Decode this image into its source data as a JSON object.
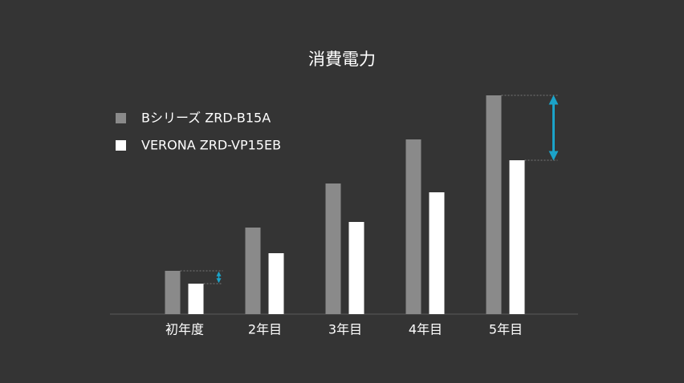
{
  "chart_data": {
    "type": "bar",
    "title": "消費電力",
    "categories": [
      "初年度",
      "2年目",
      "3年目",
      "4年目",
      "5年目"
    ],
    "series": [
      {
        "name": "Bシリーズ ZRD-B15A",
        "color": "#8a8a8a",
        "values": [
          54,
          108,
          163,
          218,
          273
        ]
      },
      {
        "name": "VERONA ZRD-VP15EB",
        "color": "#ffffff",
        "values": [
          38,
          76,
          115,
          152,
          192
        ]
      }
    ],
    "ylim": [
      0,
      300
    ],
    "legend": "upper-left",
    "annotation_color": "#1ba3c9"
  }
}
